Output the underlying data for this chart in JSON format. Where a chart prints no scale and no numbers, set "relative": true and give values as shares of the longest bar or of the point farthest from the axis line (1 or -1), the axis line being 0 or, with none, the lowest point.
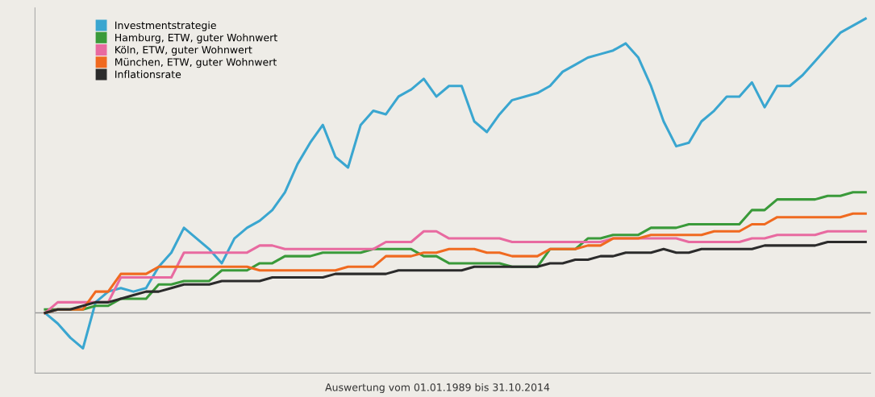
{
  "chart_data": {
    "type": "line",
    "relative": true,
    "grid": false,
    "legend": "top left",
    "marker": "none",
    "line_style": "solid",
    "categories": [
      null,
      null,
      null,
      null,
      null,
      null,
      null,
      null,
      null,
      null,
      null,
      null,
      null,
      null,
      null,
      null,
      null,
      null,
      null,
      null,
      null,
      null,
      null,
      null,
      null,
      null,
      null,
      null,
      null,
      null,
      null,
      null,
      null,
      null,
      null,
      null,
      null,
      null,
      null,
      null,
      null,
      null,
      null,
      null,
      null,
      null,
      null,
      null,
      null,
      null,
      null,
      null,
      null,
      null,
      null,
      null,
      null,
      null,
      null,
      null,
      null,
      null,
      null,
      null,
      null,
      null
    ],
    "series": [
      {
        "name": "Investmentstrategie",
        "color": "#3aa6d0",
        "values": [
          0.17,
          0.14,
          0.1,
          0.07,
          0.2,
          0.23,
          0.24,
          0.23,
          0.24,
          0.3,
          0.34,
          0.41,
          0.38,
          0.35,
          0.31,
          0.38,
          0.41,
          0.43,
          0.46,
          0.51,
          0.59,
          0.65,
          0.7,
          0.61,
          0.58,
          0.7,
          0.74,
          0.73,
          0.78,
          0.8,
          0.83,
          0.78,
          0.81,
          0.81,
          0.71,
          0.68,
          0.73,
          0.77,
          0.78,
          0.79,
          0.81,
          0.85,
          0.87,
          0.89,
          0.9,
          0.91,
          0.93,
          0.89,
          0.81,
          0.71,
          0.64,
          0.65,
          0.71,
          0.74,
          0.78,
          0.78,
          0.82,
          0.75,
          0.81,
          0.81,
          0.84,
          0.88,
          0.92,
          0.96,
          0.98,
          1.0
        ]
      },
      {
        "name": "Hamburg, ETW, guter Wohnwert",
        "color": "#3a9a3a",
        "values": [
          0.18,
          0.18,
          0.18,
          0.18,
          0.19,
          0.19,
          0.21,
          0.21,
          0.21,
          0.25,
          0.25,
          0.26,
          0.26,
          0.26,
          0.29,
          0.29,
          0.29,
          0.31,
          0.31,
          0.33,
          0.33,
          0.33,
          0.34,
          0.34,
          0.34,
          0.34,
          0.35,
          0.35,
          0.35,
          0.35,
          0.33,
          0.33,
          0.31,
          0.31,
          0.31,
          0.31,
          0.31,
          0.3,
          0.3,
          0.3,
          0.35,
          0.35,
          0.35,
          0.38,
          0.38,
          0.39,
          0.39,
          0.39,
          0.41,
          0.41,
          0.41,
          0.42,
          0.42,
          0.42,
          0.42,
          0.42,
          0.46,
          0.46,
          0.49,
          0.49,
          0.49,
          0.49,
          0.5,
          0.5,
          0.51,
          0.51
        ]
      },
      {
        "name": "Köln, ETW, guter Wohnwert",
        "color": "#e86aa0",
        "values": [
          0.17,
          0.2,
          0.2,
          0.2,
          0.2,
          0.2,
          0.27,
          0.27,
          0.27,
          0.27,
          0.27,
          0.34,
          0.34,
          0.34,
          0.34,
          0.34,
          0.34,
          0.36,
          0.36,
          0.35,
          0.35,
          0.35,
          0.35,
          0.35,
          0.35,
          0.35,
          0.35,
          0.37,
          0.37,
          0.37,
          0.4,
          0.4,
          0.38,
          0.38,
          0.38,
          0.38,
          0.38,
          0.37,
          0.37,
          0.37,
          0.37,
          0.37,
          0.37,
          0.37,
          0.37,
          0.38,
          0.38,
          0.38,
          0.38,
          0.38,
          0.38,
          0.37,
          0.37,
          0.37,
          0.37,
          0.37,
          0.38,
          0.38,
          0.39,
          0.39,
          0.39,
          0.39,
          0.4,
          0.4,
          0.4,
          0.4
        ]
      },
      {
        "name": "München, ETW, guter Wohnwert",
        "color": "#f06a20",
        "values": [
          0.17,
          0.18,
          0.18,
          0.18,
          0.23,
          0.23,
          0.28,
          0.28,
          0.28,
          0.3,
          0.3,
          0.3,
          0.3,
          0.3,
          0.3,
          0.3,
          0.3,
          0.29,
          0.29,
          0.29,
          0.29,
          0.29,
          0.29,
          0.29,
          0.3,
          0.3,
          0.3,
          0.33,
          0.33,
          0.33,
          0.34,
          0.34,
          0.35,
          0.35,
          0.35,
          0.34,
          0.34,
          0.33,
          0.33,
          0.33,
          0.35,
          0.35,
          0.35,
          0.36,
          0.36,
          0.38,
          0.38,
          0.38,
          0.39,
          0.39,
          0.39,
          0.39,
          0.39,
          0.4,
          0.4,
          0.4,
          0.42,
          0.42,
          0.44,
          0.44,
          0.44,
          0.44,
          0.44,
          0.44,
          0.45,
          0.45
        ]
      },
      {
        "name": "Inflationsrate",
        "color": "#2b2b2b",
        "values": [
          0.17,
          0.18,
          0.18,
          0.19,
          0.2,
          0.2,
          0.21,
          0.22,
          0.23,
          0.23,
          0.24,
          0.25,
          0.25,
          0.25,
          0.26,
          0.26,
          0.26,
          0.26,
          0.27,
          0.27,
          0.27,
          0.27,
          0.27,
          0.28,
          0.28,
          0.28,
          0.28,
          0.28,
          0.29,
          0.29,
          0.29,
          0.29,
          0.29,
          0.29,
          0.3,
          0.3,
          0.3,
          0.3,
          0.3,
          0.3,
          0.31,
          0.31,
          0.32,
          0.32,
          0.33,
          0.33,
          0.34,
          0.34,
          0.34,
          0.35,
          0.34,
          0.34,
          0.35,
          0.35,
          0.35,
          0.35,
          0.35,
          0.36,
          0.36,
          0.36,
          0.36,
          0.36,
          0.37,
          0.37,
          0.37,
          0.37
        ]
      }
    ],
    "ref_lines": [
      {
        "axis": "y",
        "value": 0.17,
        "color": "#9a9a9a",
        "line_style": "solid"
      }
    ],
    "annotations": [
      "Auswertung vom 01.01.1989 bis 31.10.2014"
    ]
  }
}
